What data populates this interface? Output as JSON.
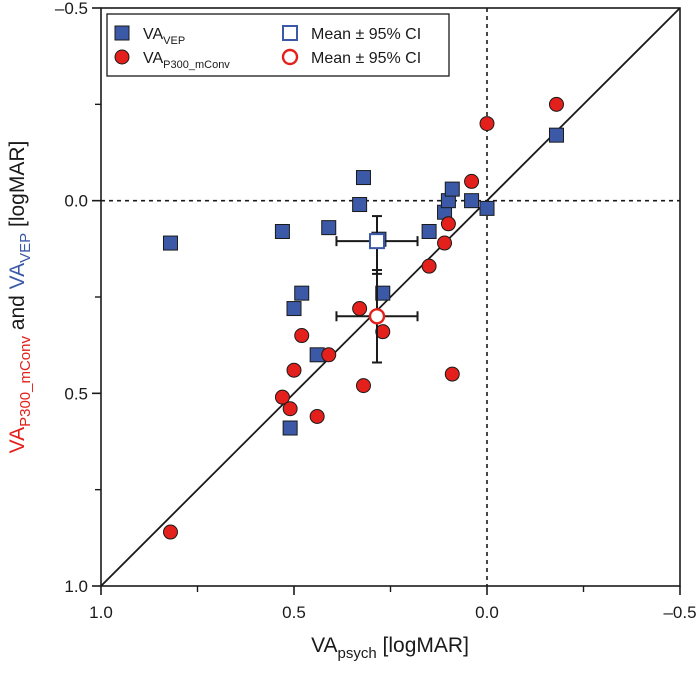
{
  "chart_data": {
    "type": "scatter",
    "title": "",
    "xlabel": {
      "main": "VA",
      "sub": "psych",
      "unit": " [logMAR]"
    },
    "ylabel": {
      "part1_main": "VA",
      "part1_sub": "P300_mConv",
      "joiner": " and ",
      "part2_main": "VA",
      "part2_sub": "VEP",
      "unit": " [logMAR]"
    },
    "xlim": [
      1.0,
      -0.5
    ],
    "ylim": [
      1.0,
      -0.5
    ],
    "xticks": [
      {
        "value": 1.0,
        "label": "1.0"
      },
      {
        "value": 0.5,
        "label": "0.5"
      },
      {
        "value": 0.0,
        "label": "0.0"
      },
      {
        "value": -0.5,
        "label": "–0.5"
      }
    ],
    "yticks": [
      {
        "value": 1.0,
        "label": "1.0"
      },
      {
        "value": 0.5,
        "label": "0.5"
      },
      {
        "value": 0.0,
        "label": "0.0"
      },
      {
        "value": -0.5,
        "label": "–0.5"
      }
    ],
    "minor_ticks": [
      0.75,
      0.25,
      -0.25
    ],
    "reference_lines": {
      "identity": true,
      "x_zero_dotted": true,
      "y_zero_dotted": true
    },
    "legend": {
      "position": "top-left",
      "entries": [
        {
          "main": "VA",
          "sub": "VEP",
          "marker": "square-filled"
        },
        {
          "main": "VA",
          "sub": "P300_mConv",
          "marker": "circle-filled"
        },
        {
          "main": "Mean ± 95% CI",
          "sub": "",
          "marker": "square-open"
        },
        {
          "main": "Mean ± 95% CI",
          "sub": "",
          "marker": "circle-open"
        }
      ]
    },
    "colors": {
      "vep": "#3b59a6",
      "p300": "#e3201b",
      "marker_edge": "#1a1a1a",
      "ylabel_p300": "#e3201b",
      "ylabel_vep": "#3b59a6",
      "axis": "#1a1a1a"
    },
    "series": [
      {
        "name": "VA_VEP",
        "marker": "square",
        "points": [
          [
            0.82,
            0.11
          ],
          [
            0.53,
            0.08
          ],
          [
            0.5,
            0.28
          ],
          [
            0.48,
            0.24
          ],
          [
            0.51,
            0.59
          ],
          [
            0.44,
            0.4
          ],
          [
            0.41,
            0.07
          ],
          [
            0.32,
            -0.06
          ],
          [
            0.33,
            0.01
          ],
          [
            0.28,
            0.1
          ],
          [
            0.27,
            0.24
          ],
          [
            0.15,
            0.08
          ],
          [
            0.11,
            0.03
          ],
          [
            0.1,
            0.0
          ],
          [
            0.09,
            -0.03
          ],
          [
            0.04,
            0.0
          ],
          [
            0.0,
            0.02
          ],
          [
            -0.18,
            -0.17
          ]
        ]
      },
      {
        "name": "VA_P300_mConv",
        "marker": "circle",
        "points": [
          [
            0.82,
            0.86
          ],
          [
            0.53,
            0.51
          ],
          [
            0.51,
            0.54
          ],
          [
            0.5,
            0.44
          ],
          [
            0.48,
            0.35
          ],
          [
            0.44,
            0.56
          ],
          [
            0.41,
            0.4
          ],
          [
            0.33,
            0.28
          ],
          [
            0.32,
            0.48
          ],
          [
            0.27,
            0.34
          ],
          [
            0.15,
            0.17
          ],
          [
            0.11,
            0.11
          ],
          [
            0.1,
            0.06
          ],
          [
            0.09,
            0.45
          ],
          [
            0.04,
            -0.05
          ],
          [
            0.0,
            -0.2
          ],
          [
            -0.18,
            -0.25
          ]
        ]
      }
    ],
    "means": [
      {
        "series": "VA_VEP",
        "x": 0.285,
        "y": 0.105,
        "x_ci": [
          0.39,
          0.18
        ],
        "y_ci": [
          0.04,
          0.19
        ]
      },
      {
        "series": "VA_P300_mConv",
        "x": 0.285,
        "y": 0.3,
        "x_ci": [
          0.39,
          0.18
        ],
        "y_ci": [
          0.18,
          0.42
        ]
      }
    ]
  }
}
